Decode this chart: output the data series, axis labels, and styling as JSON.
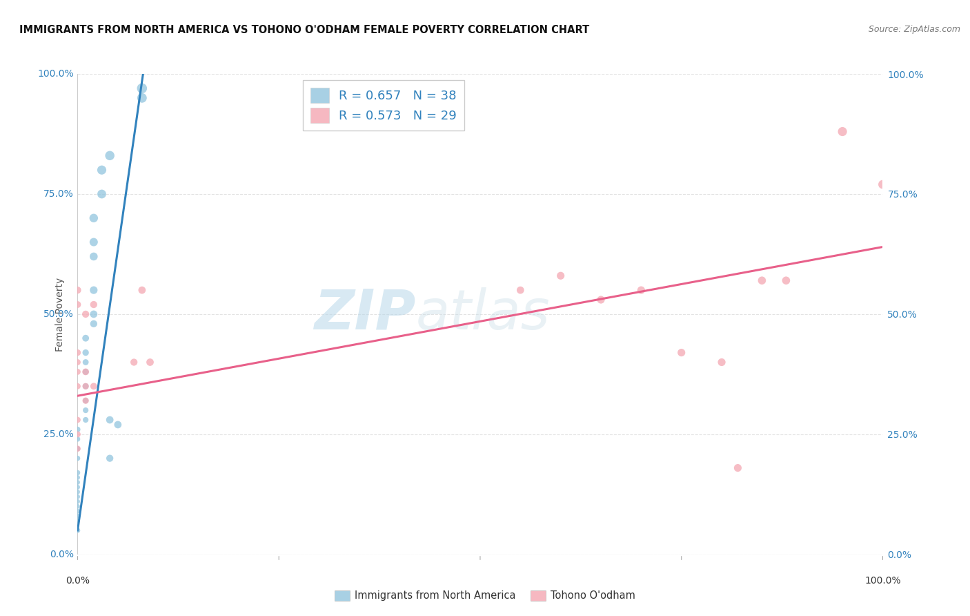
{
  "title": "IMMIGRANTS FROM NORTH AMERICA VS TOHONO O'ODHAM FEMALE POVERTY CORRELATION CHART",
  "source": "Source: ZipAtlas.com",
  "ylabel": "Female Poverty",
  "legend_blue_label": "R = 0.657   N = 38",
  "legend_pink_label": "R = 0.573   N = 29",
  "blue_color": "#92c5de",
  "pink_color": "#f4a7b2",
  "line_blue": "#3182bd",
  "line_pink": "#e8608a",
  "watermark_zip": "ZIP",
  "watermark_atlas": "atlas",
  "blue_scatter": [
    [
      0.0,
      0.05
    ],
    [
      0.0,
      0.07
    ],
    [
      0.0,
      0.08
    ],
    [
      0.0,
      0.09
    ],
    [
      0.0,
      0.1
    ],
    [
      0.0,
      0.11
    ],
    [
      0.0,
      0.12
    ],
    [
      0.0,
      0.13
    ],
    [
      0.0,
      0.14
    ],
    [
      0.0,
      0.15
    ],
    [
      0.0,
      0.16
    ],
    [
      0.0,
      0.17
    ],
    [
      0.0,
      0.2
    ],
    [
      0.0,
      0.22
    ],
    [
      0.0,
      0.24
    ],
    [
      0.0,
      0.26
    ],
    [
      0.01,
      0.28
    ],
    [
      0.01,
      0.3
    ],
    [
      0.01,
      0.32
    ],
    [
      0.01,
      0.35
    ],
    [
      0.01,
      0.38
    ],
    [
      0.01,
      0.4
    ],
    [
      0.01,
      0.42
    ],
    [
      0.01,
      0.45
    ],
    [
      0.02,
      0.48
    ],
    [
      0.02,
      0.5
    ],
    [
      0.02,
      0.55
    ],
    [
      0.02,
      0.62
    ],
    [
      0.02,
      0.65
    ],
    [
      0.02,
      0.7
    ],
    [
      0.03,
      0.75
    ],
    [
      0.03,
      0.8
    ],
    [
      0.04,
      0.83
    ],
    [
      0.04,
      0.28
    ],
    [
      0.04,
      0.2
    ],
    [
      0.05,
      0.27
    ],
    [
      0.08,
      0.95
    ],
    [
      0.08,
      0.97
    ]
  ],
  "pink_scatter": [
    [
      0.0,
      0.35
    ],
    [
      0.0,
      0.38
    ],
    [
      0.0,
      0.4
    ],
    [
      0.0,
      0.42
    ],
    [
      0.0,
      0.52
    ],
    [
      0.0,
      0.55
    ],
    [
      0.0,
      0.22
    ],
    [
      0.0,
      0.25
    ],
    [
      0.0,
      0.28
    ],
    [
      0.01,
      0.35
    ],
    [
      0.01,
      0.5
    ],
    [
      0.01,
      0.32
    ],
    [
      0.01,
      0.38
    ],
    [
      0.02,
      0.52
    ],
    [
      0.02,
      0.35
    ],
    [
      0.07,
      0.4
    ],
    [
      0.08,
      0.55
    ],
    [
      0.09,
      0.4
    ],
    [
      0.55,
      0.55
    ],
    [
      0.6,
      0.58
    ],
    [
      0.65,
      0.53
    ],
    [
      0.7,
      0.55
    ],
    [
      0.75,
      0.42
    ],
    [
      0.8,
      0.4
    ],
    [
      0.82,
      0.18
    ],
    [
      0.85,
      0.57
    ],
    [
      0.88,
      0.57
    ],
    [
      0.95,
      0.88
    ],
    [
      1.0,
      0.77
    ]
  ],
  "blue_scatter_sizes": [
    30,
    25,
    25,
    25,
    25,
    25,
    25,
    25,
    25,
    25,
    25,
    30,
    30,
    30,
    30,
    35,
    35,
    35,
    35,
    40,
    40,
    40,
    45,
    50,
    55,
    60,
    65,
    70,
    75,
    80,
    85,
    90,
    95,
    60,
    55,
    60,
    100,
    110
  ],
  "pink_scatter_sizes": [
    40,
    40,
    40,
    45,
    50,
    55,
    40,
    40,
    40,
    45,
    55,
    45,
    50,
    55,
    50,
    55,
    60,
    60,
    60,
    65,
    65,
    65,
    65,
    65,
    65,
    70,
    70,
    90,
    85
  ],
  "blue_line_x": [
    0.0,
    0.083
  ],
  "blue_line_y": [
    0.05,
    1.02
  ],
  "pink_line_x": [
    0.0,
    1.0
  ],
  "pink_line_y": [
    0.33,
    0.64
  ],
  "xlim": [
    0.0,
    1.0
  ],
  "ylim": [
    0.0,
    1.0
  ],
  "xticks": [
    0.0,
    0.25,
    0.5,
    0.75,
    1.0
  ],
  "yticks": [
    0.0,
    0.25,
    0.5,
    0.75,
    1.0
  ],
  "tick_labels": [
    "0.0%",
    "25.0%",
    "50.0%",
    "75.0%",
    "100.0%"
  ]
}
